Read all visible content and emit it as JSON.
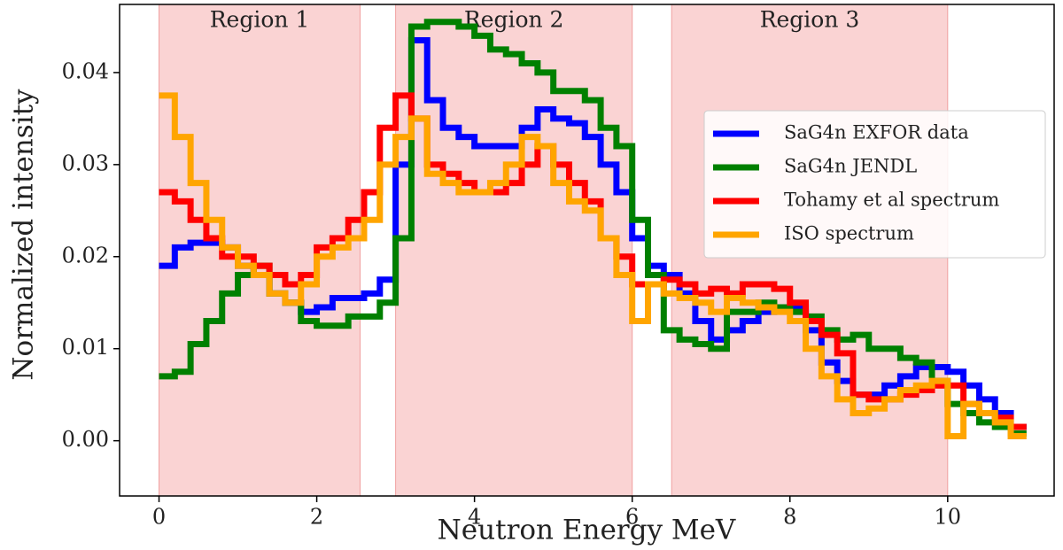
{
  "chart_data": {
    "type": "step",
    "xlabel": "Neutron Energy MeV",
    "ylabel": "Normalized intensity",
    "xlim": [
      -0.5,
      11.35
    ],
    "ylim": [
      -0.006,
      0.0474
    ],
    "xticks": [
      0,
      2,
      4,
      6,
      8,
      10
    ],
    "yticks": [
      {
        "value": 0,
        "label": "0.00"
      },
      {
        "value": 0.01,
        "label": "0.01"
      },
      {
        "value": 0.02,
        "label": "0.02"
      },
      {
        "value": 0.03,
        "label": "0.03"
      },
      {
        "value": 0.04,
        "label": "0.04"
      }
    ],
    "legend": "upper right",
    "regions": [
      {
        "label": "Region 1",
        "range": [
          0,
          2.55
        ],
        "color": "#f8c4c4"
      },
      {
        "label": "Region 2",
        "range": [
          3,
          6
        ],
        "color": "#f8c4c4"
      },
      {
        "label": "Region 3",
        "range": [
          6.5,
          10
        ],
        "color": "#f8c4c4"
      }
    ],
    "x": [
      0,
      0.2,
      0.4,
      0.6,
      0.8,
      1.0,
      1.2,
      1.4,
      1.6,
      1.8,
      2.0,
      2.2,
      2.4,
      2.6,
      2.8,
      3.0,
      3.2,
      3.4,
      3.6,
      3.8,
      4.0,
      4.2,
      4.4,
      4.6,
      4.8,
      5.0,
      5.2,
      5.4,
      5.6,
      5.8,
      6.0,
      6.2,
      6.4,
      6.6,
      6.8,
      7.0,
      7.2,
      7.4,
      7.6,
      7.8,
      8.0,
      8.2,
      8.4,
      8.6,
      8.8,
      9.0,
      9.2,
      9.4,
      9.6,
      9.8,
      10.0,
      10.2,
      10.4,
      10.6,
      10.8
    ],
    "series": [
      {
        "name": "SaG4n EXFOR data",
        "color": "#0000ff",
        "values": [
          0.019,
          0.021,
          0.0215,
          0.0215,
          0.021,
          0.019,
          0.018,
          0.016,
          0.015,
          0.014,
          0.0145,
          0.0155,
          0.0155,
          0.016,
          0.0175,
          0.03,
          0.0435,
          0.037,
          0.034,
          0.033,
          0.032,
          0.032,
          0.032,
          0.034,
          0.036,
          0.035,
          0.0345,
          0.033,
          0.03,
          0.027,
          0.022,
          0.019,
          0.018,
          0.016,
          0.013,
          0.011,
          0.012,
          0.013,
          0.014,
          0.0145,
          0.0145,
          0.012,
          0.0085,
          0.0065,
          0.005,
          0.005,
          0.006,
          0.007,
          0.008,
          0.008,
          0.0075,
          0.006,
          0.0045,
          0.003,
          0.0015
        ]
      },
      {
        "name": "SaG4n JENDL",
        "color": "#008000",
        "values": [
          0.007,
          0.0075,
          0.0105,
          0.013,
          0.016,
          0.018,
          0.019,
          0.016,
          0.015,
          0.013,
          0.0125,
          0.0125,
          0.0135,
          0.0135,
          0.015,
          0.022,
          0.045,
          0.0455,
          0.0455,
          0.045,
          0.044,
          0.0425,
          0.042,
          0.041,
          0.04,
          0.038,
          0.038,
          0.037,
          0.034,
          0.032,
          0.024,
          0.018,
          0.012,
          0.011,
          0.0105,
          0.01,
          0.014,
          0.014,
          0.015,
          0.0145,
          0.014,
          0.0135,
          0.012,
          0.011,
          0.0115,
          0.01,
          0.01,
          0.009,
          0.0085,
          0.0065,
          0.004,
          0.003,
          0.002,
          0.0015,
          0.0008
        ]
      },
      {
        "name": "Tohamy et al spectrum",
        "color": "#ff0000",
        "values": [
          0.027,
          0.026,
          0.024,
          0.022,
          0.02,
          0.02,
          0.019,
          0.018,
          0.017,
          0.018,
          0.021,
          0.022,
          0.024,
          0.027,
          0.034,
          0.0375,
          0.035,
          0.03,
          0.029,
          0.028,
          0.027,
          0.027,
          0.028,
          0.03,
          0.032,
          0.03,
          0.028,
          0.026,
          0.022,
          0.02,
          0.017,
          0.017,
          0.0175,
          0.017,
          0.016,
          0.0165,
          0.016,
          0.017,
          0.017,
          0.0165,
          0.015,
          0.013,
          0.0115,
          0.0095,
          0.005,
          0.0045,
          0.0045,
          0.005,
          0.0055,
          0.006,
          0.006,
          0.004,
          0.003,
          0.0025,
          0.0015
        ]
      },
      {
        "name": "ISO spectrum",
        "color": "#ffa500",
        "values": [
          0.0375,
          0.033,
          0.028,
          0.024,
          0.021,
          0.019,
          0.018,
          0.016,
          0.015,
          0.017,
          0.02,
          0.021,
          0.022,
          0.024,
          0.03,
          0.033,
          0.035,
          0.029,
          0.028,
          0.027,
          0.027,
          0.028,
          0.03,
          0.033,
          0.032,
          0.028,
          0.026,
          0.025,
          0.022,
          0.018,
          0.013,
          0.017,
          0.016,
          0.0155,
          0.015,
          0.014,
          0.0155,
          0.015,
          0.0145,
          0.014,
          0.013,
          0.01,
          0.007,
          0.0045,
          0.003,
          0.0035,
          0.0045,
          0.0055,
          0.006,
          0.0065,
          0.0005,
          0.004,
          0.003,
          0.002,
          0.0005
        ]
      }
    ]
  }
}
